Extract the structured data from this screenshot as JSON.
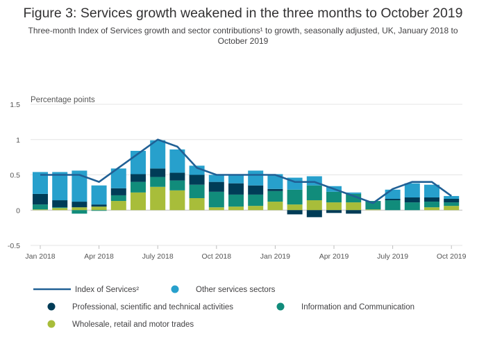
{
  "chart_data": {
    "type": "bar",
    "title": "Figure 3: Services growth weakened in the three months to October 2019",
    "subtitle": "Three-month Index of Services growth and sector contributions¹ to growth, seasonally adjusted, UK, January 2018 to October 2019",
    "ylabel": "Percentage points",
    "ylim": [
      -0.5,
      1.5
    ],
    "yticks": [
      "1.5",
      "1",
      "0.5",
      "0",
      "-0.5"
    ],
    "ytick_values": [
      1.5,
      1,
      0.5,
      0,
      -0.5
    ],
    "grid": true,
    "legend_position": "bottom",
    "categories": [
      "Jan 2018",
      "Feb 2018",
      "Mar 2018",
      "Apr 2018",
      "May 2018",
      "Jun 2018",
      "Jul 2018",
      "Aug 2018",
      "Sep 2018",
      "Oct 2018",
      "Nov 2018",
      "Dec 2018",
      "Jan 2019",
      "Feb 2019",
      "Mar 2019",
      "Apr 2019",
      "May 2019",
      "Jun 2019",
      "Jul 2019",
      "Aug 2019",
      "Sep 2019",
      "Oct 2019"
    ],
    "xtick_labels": [
      {
        "index": 0,
        "label": "Jan 2018"
      },
      {
        "index": 3,
        "label": "Apr 2018"
      },
      {
        "index": 6,
        "label": "July 2018"
      },
      {
        "index": 9,
        "label": "Oct 2018"
      },
      {
        "index": 12,
        "label": "Jan 2019"
      },
      {
        "index": 15,
        "label": "Apr 2019"
      },
      {
        "index": 18,
        "label": "July 2019"
      },
      {
        "index": 21,
        "label": "Oct 2019"
      }
    ],
    "series": [
      {
        "name": "Wholesale, retail and motor trades",
        "kind": "bar",
        "color": "#a8bd3a",
        "values": [
          0.01,
          0.03,
          0.04,
          0.05,
          0.13,
          0.25,
          0.33,
          0.28,
          0.17,
          0.04,
          0.05,
          0.06,
          0.12,
          0.08,
          0.14,
          0.11,
          0.11,
          0.01,
          0.0,
          0.0,
          0.04,
          0.06
        ]
      },
      {
        "name": "Information and Communication",
        "kind": "bar",
        "color": "#118c7b",
        "values": [
          0.07,
          0.01,
          -0.05,
          -0.01,
          0.08,
          0.15,
          0.14,
          0.14,
          0.19,
          0.22,
          0.17,
          0.16,
          0.15,
          0.21,
          0.21,
          0.15,
          0.12,
          0.12,
          0.14,
          0.11,
          0.08,
          0.05
        ]
      },
      {
        "name": "Professional, scientific and technical activities",
        "kind": "bar",
        "color": "#003c57",
        "values": [
          0.15,
          0.1,
          0.08,
          0.03,
          0.1,
          0.11,
          0.12,
          0.11,
          0.14,
          0.14,
          0.16,
          0.13,
          0.03,
          -0.06,
          -0.1,
          -0.04,
          -0.05,
          0.0,
          0.02,
          0.07,
          0.06,
          0.05
        ]
      },
      {
        "name": "Other services sectors",
        "kind": "bar",
        "color": "#27a0cc",
        "values": [
          0.31,
          0.4,
          0.44,
          0.27,
          0.28,
          0.33,
          0.4,
          0.33,
          0.13,
          0.1,
          0.12,
          0.21,
          0.21,
          0.17,
          0.13,
          0.08,
          0.02,
          0.0,
          0.13,
          0.2,
          0.18,
          0.04
        ]
      },
      {
        "name": "Index of Services²",
        "kind": "line",
        "color": "#206095",
        "values": [
          0.5,
          0.5,
          0.5,
          0.4,
          0.6,
          0.8,
          1.0,
          0.9,
          0.6,
          0.5,
          0.5,
          0.5,
          0.5,
          0.4,
          0.4,
          0.3,
          0.2,
          0.1,
          0.3,
          0.4,
          0.4,
          0.2
        ]
      }
    ]
  },
  "legend": {
    "items": [
      {
        "label": "Index of Services²",
        "color": "#206095",
        "marker": "line"
      },
      {
        "label": "Other services sectors",
        "color": "#27a0cc",
        "marker": "circle"
      },
      {
        "label": "Professional, scientific and technical activities",
        "color": "#003c57",
        "marker": "circle"
      },
      {
        "label": "Information and Communication",
        "color": "#118c7b",
        "marker": "circle"
      },
      {
        "label": "Wholesale, retail and motor trades",
        "color": "#a8bd3a",
        "marker": "circle"
      }
    ]
  }
}
